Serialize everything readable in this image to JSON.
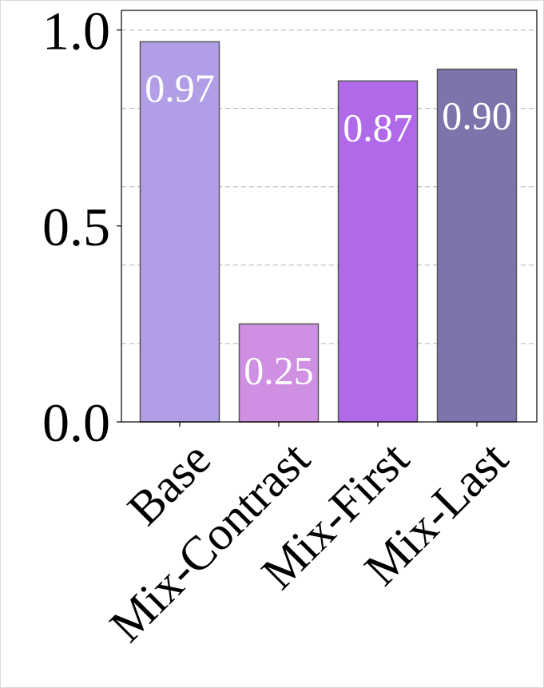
{
  "chart_data": {
    "type": "bar",
    "categories": [
      "Base",
      "Mix-Contrast",
      "Mix-First",
      "Mix-Last"
    ],
    "values": [
      0.97,
      0.25,
      0.87,
      0.9
    ],
    "data_labels": [
      "0.97",
      "0.25",
      "0.87",
      "0.90"
    ],
    "colors": [
      "#b29ee6",
      "#cf8fe3",
      "#b06ae9",
      "#7d74ab"
    ],
    "edge_color": "#555555",
    "title": "",
    "xlabel": "",
    "ylabel": "",
    "ylim": [
      0,
      1.05
    ],
    "yticks": [
      0.0,
      0.5,
      1.0
    ],
    "ytick_labels": [
      "0.0",
      "0.5",
      "1.0"
    ],
    "grid": {
      "axis": "y",
      "style": "dashed",
      "step": 0.2,
      "color": "#b0b0b0"
    },
    "legend": "none"
  }
}
